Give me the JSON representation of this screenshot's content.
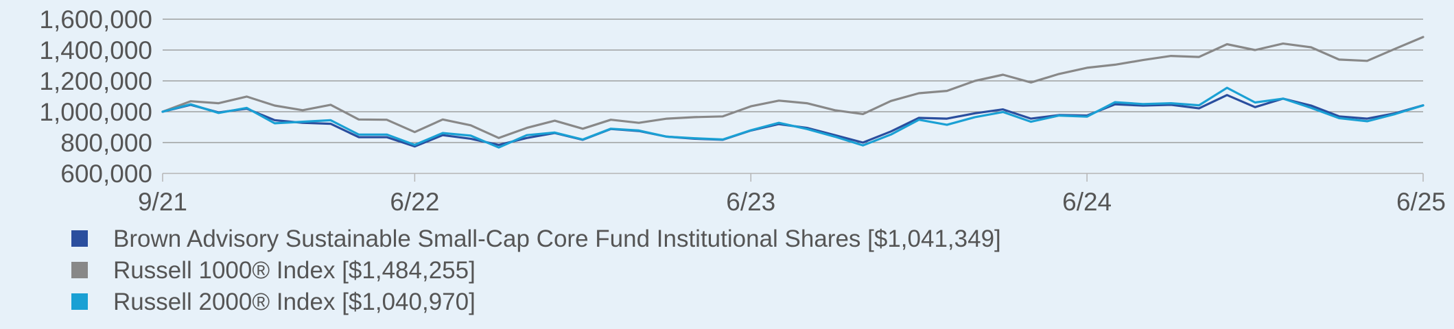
{
  "chart_data": {
    "type": "line",
    "title": "",
    "xlabel": "",
    "ylabel": "",
    "x_range": [
      "2021-09",
      "2025-06"
    ],
    "x_ticks": [
      {
        "date": "2021-09",
        "label": "9/21"
      },
      {
        "date": "2022-06",
        "label": "6/22"
      },
      {
        "date": "2023-06",
        "label": "6/23"
      },
      {
        "date": "2024-06",
        "label": "6/24"
      },
      {
        "date": "2025-06",
        "label": "6/25"
      }
    ],
    "ylim": [
      600000,
      1600000
    ],
    "y_ticks": [
      {
        "value": 600000,
        "label": "600,000"
      },
      {
        "value": 800000,
        "label": "800,000"
      },
      {
        "value": 1000000,
        "label": "1,000,000"
      },
      {
        "value": 1200000,
        "label": "1,200,000"
      },
      {
        "value": 1400000,
        "label": "1,400,000"
      },
      {
        "value": 1600000,
        "label": "1,600,000"
      }
    ],
    "grid": true,
    "legend_position": "bottom-left",
    "x": [
      "2021-09",
      "2021-10",
      "2021-11",
      "2021-12",
      "2022-01",
      "2022-02",
      "2022-03",
      "2022-04",
      "2022-05",
      "2022-06",
      "2022-07",
      "2022-08",
      "2022-09",
      "2022-10",
      "2022-11",
      "2022-12",
      "2023-01",
      "2023-02",
      "2023-03",
      "2023-04",
      "2023-05",
      "2023-06",
      "2023-07",
      "2023-08",
      "2023-09",
      "2023-10",
      "2023-11",
      "2023-12",
      "2024-01",
      "2024-02",
      "2024-03",
      "2024-04",
      "2024-05",
      "2024-06",
      "2024-07",
      "2024-08",
      "2024-09",
      "2024-10",
      "2024-11",
      "2024-12",
      "2025-01",
      "2025-02",
      "2025-03",
      "2025-04",
      "2025-05",
      "2025-06"
    ],
    "series": [
      {
        "name": "Brown Advisory Sustainable Small-Cap Core Fund Institutional Shares [$1,041,349]",
        "color": "#2a4e9e",
        "values": [
          1000000,
          1045000,
          995000,
          1020000,
          945000,
          928000,
          922000,
          835000,
          835000,
          775000,
          848000,
          825000,
          785000,
          830000,
          862000,
          818000,
          888000,
          875000,
          838000,
          825000,
          818000,
          878000,
          920000,
          895000,
          848000,
          800000,
          872000,
          960000,
          955000,
          990000,
          1015000,
          955000,
          978000,
          975000,
          1048000,
          1040000,
          1045000,
          1022000,
          1108000,
          1030000,
          1085000,
          1040000,
          970000,
          955000,
          990000,
          1041349
        ]
      },
      {
        "name": "Russell 1000® Index [$1,484,255]",
        "color": "#888888",
        "values": [
          1000000,
          1068000,
          1055000,
          1098000,
          1040000,
          1010000,
          1045000,
          950000,
          948000,
          868000,
          950000,
          912000,
          830000,
          895000,
          942000,
          890000,
          948000,
          928000,
          955000,
          965000,
          970000,
          1035000,
          1072000,
          1055000,
          1010000,
          985000,
          1070000,
          1120000,
          1135000,
          1200000,
          1240000,
          1190000,
          1245000,
          1285000,
          1305000,
          1335000,
          1362000,
          1355000,
          1438000,
          1400000,
          1442000,
          1418000,
          1338000,
          1330000,
          1408000,
          1484255
        ]
      },
      {
        "name": "Russell 2000® Index [$1,040,970]",
        "color": "#1aa0d4",
        "values": [
          1000000,
          1048000,
          992000,
          1025000,
          925000,
          935000,
          945000,
          852000,
          852000,
          785000,
          862000,
          845000,
          768000,
          848000,
          865000,
          820000,
          890000,
          878000,
          838000,
          828000,
          820000,
          880000,
          928000,
          888000,
          838000,
          782000,
          852000,
          948000,
          915000,
          965000,
          998000,
          935000,
          975000,
          968000,
          1062000,
          1050000,
          1055000,
          1042000,
          1155000,
          1060000,
          1085000,
          1025000,
          958000,
          938000,
          985000,
          1040970
        ]
      }
    ]
  }
}
